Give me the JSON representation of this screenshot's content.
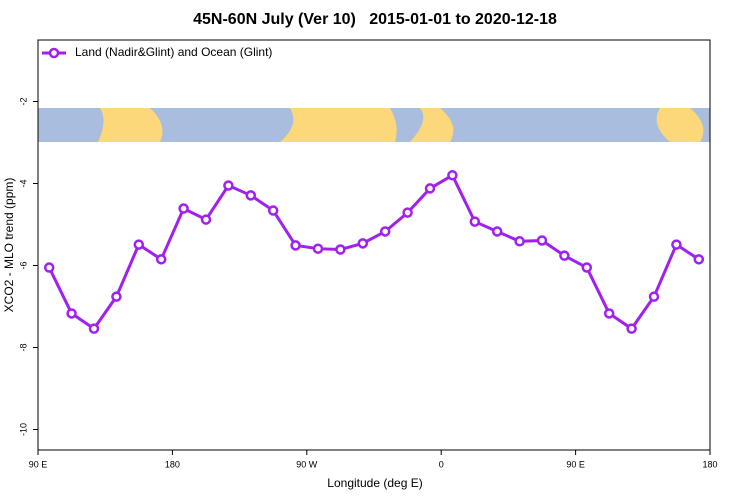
{
  "chart_data": {
    "type": "line",
    "title": "45N-60N July (Ver 10)   2015-01-01 to 2020-12-18",
    "x_label": "Longitude (deg E)",
    "y_label": "XCO2 - MLO trend (ppm)",
    "x": [
      97.5,
      112.5,
      127.5,
      142.5,
      157.5,
      172.5,
      187.5,
      202.5,
      217.5,
      232.5,
      247.5,
      262.5,
      277.5,
      292.5,
      307.5,
      322.5,
      337.5,
      352.5,
      367.5,
      382.5,
      397.5,
      412.5,
      427.5,
      442.5,
      457.5,
      472.5,
      487.5,
      502.5,
      517.5,
      532.5
    ],
    "series": [
      {
        "name": "Land (Nadir&Glint) and Ocean (Glint)",
        "color": "#a020f0",
        "values": [
          -6.05,
          -7.17,
          -7.54,
          -6.76,
          -5.49,
          -5.85,
          -4.61,
          -4.88,
          -4.05,
          -4.29,
          -4.66,
          -5.51,
          -5.59,
          -5.61,
          -5.46,
          -5.17,
          -4.71,
          -4.12,
          -3.8,
          -4.93,
          -5.17,
          -5.41,
          -5.39,
          -5.76,
          -6.05,
          -7.17,
          -7.54,
          -6.76,
          -5.49,
          -5.85
        ]
      }
    ],
    "xlim": [
      90,
      540
    ],
    "xticks": [
      {
        "value": 90,
        "label": "90 E"
      },
      {
        "value": 180,
        "label": "180"
      },
      {
        "value": 270,
        "label": "90 W"
      },
      {
        "value": 360,
        "label": "0"
      },
      {
        "value": 450,
        "label": "90 E"
      },
      {
        "value": 540,
        "label": "180"
      }
    ],
    "ylim": [
      -10.5,
      -0.5
    ],
    "yticks": [
      -2,
      -4,
      -6,
      -8,
      -10
    ],
    "legend": "top-left"
  }
}
